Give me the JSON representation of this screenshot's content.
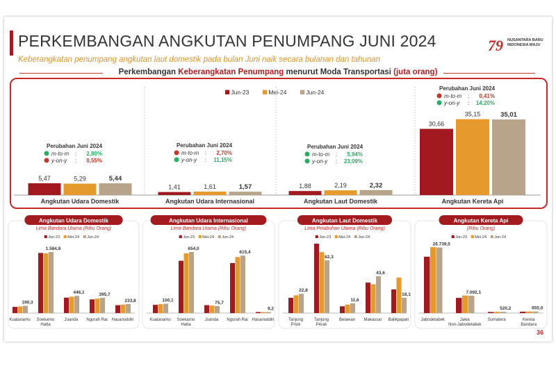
{
  "header": {
    "title": "PERKEMBANGAN ANGKUTAN PENUMPANG JUNI 2024",
    "subtitle": "Keberangkatan penumpang angkutan laut domestik pada bulan Juni naik secara bulanan dan tahunan",
    "logo_text": "NUSANTARA BARU INDONESIA MAJU"
  },
  "section": {
    "prefix": "Perkembangan ",
    "highlight": "Keberangkatan Penumpang",
    "middle": " menurut Moda Transportasi ",
    "unit": "(juta orang)"
  },
  "page_number": "36",
  "colors": {
    "jun23": "#a01a1f",
    "mei24": "#e59a2b",
    "jun24": "#b8a48a",
    "accent": "#c62828",
    "up": "#27ae60",
    "down": "#c0392b"
  },
  "chart_data": [
    {
      "type": "bar",
      "legend": [
        "Jun-23",
        "Mei-24",
        "Jun-24"
      ],
      "categories": [
        "Angkutan Udara Domestik",
        "Angkutan Udara Internasional",
        "Angkutan Laut Domestik",
        "Angkutan Kereta Api"
      ],
      "series": [
        {
          "name": "Jun-23",
          "values": [
            5.47,
            1.41,
            1.88,
            30.66
          ],
          "labels": [
            "5,47",
            "1,41",
            "1,88",
            "30,66"
          ]
        },
        {
          "name": "Mei-24",
          "values": [
            5.29,
            1.61,
            2.19,
            35.15
          ],
          "labels": [
            "5,29",
            "1,61",
            "2,19",
            "35,15"
          ]
        },
        {
          "name": "Jun-24",
          "values": [
            5.44,
            1.57,
            2.32,
            35.01
          ],
          "labels": [
            "5,44",
            "1,57",
            "2,32",
            "35,01"
          ]
        }
      ],
      "change_boxes": [
        {
          "title": "Perubahan Juni 2024",
          "mtm_label": "m-to-m",
          "mtm": "2,80%",
          "mtm_dir": "up",
          "yoy_label": "y-on-y",
          "yoy": "0,55%",
          "yoy_dir": "down"
        },
        {
          "title": "Perubahan Juni 2024",
          "mtm_label": "m-to-m",
          "mtm": "2,70%",
          "mtm_dir": "down",
          "yoy_label": "y-on-y",
          "yoy": "11,15%",
          "yoy_dir": "up"
        },
        {
          "title": "Perubahan Juni 2024",
          "mtm_label": "m-to-m",
          "mtm": "5,94%",
          "mtm_dir": "up",
          "yoy_label": "y-on-y",
          "yoy": "23,09%",
          "yoy_dir": "up"
        },
        {
          "title": "Perubahan Juni 2024",
          "mtm_label": "m-to-m",
          "mtm": "0,41%",
          "mtm_dir": "down",
          "yoy_label": "y-on-y",
          "yoy": "14,20%",
          "yoy_dir": "up"
        }
      ]
    },
    {
      "type": "bar",
      "title": "Angkutan Udara Domestik",
      "subtitle": "Lima Bandara Utama (Ribu Orang)",
      "legend": [
        "Jun-23",
        "Mei-24",
        "Jun-24"
      ],
      "categories": [
        "Kualanamu",
        "Soekarno Hatta",
        "Juanda",
        "Ngurah Rai",
        "Hasanuddin"
      ],
      "series": [
        {
          "name": "Jun-23",
          "values": [
            160,
            1560,
            400,
            355,
            205
          ]
        },
        {
          "name": "Mei-24",
          "values": [
            172,
            1550,
            425,
            375,
            220
          ]
        },
        {
          "name": "Jun-24",
          "values": [
            190.3,
            1584.8,
            446.1,
            395.7,
            233.8
          ]
        }
      ],
      "data_labels": [
        "190,3",
        "1.584,8",
        "446,1",
        "395,7",
        "233,8"
      ]
    },
    {
      "type": "bar",
      "title": "Angkutan Udara Internasional",
      "subtitle": "Lima Bandara Utama (Ribu Orang)",
      "legend": [
        "Jun-23",
        "Mei-24",
        "Jun-24"
      ],
      "categories": [
        "Kualanamu",
        "Soekarno Hatta",
        "Juanda",
        "Ngurah Rai",
        "Hasanuddin"
      ],
      "series": [
        {
          "name": "Jun-23",
          "values": [
            88,
            560,
            85,
            535,
            7
          ]
        },
        {
          "name": "Mei-24",
          "values": [
            95,
            640,
            80,
            600,
            8
          ]
        },
        {
          "name": "Jun-24",
          "values": [
            100.1,
            654.0,
            75.7,
            615.4,
            9.2
          ]
        }
      ],
      "data_labels": [
        "100,1",
        "654,0",
        "75,7",
        "615,4",
        "9,2"
      ]
    },
    {
      "type": "bar",
      "title": "Angkutan Laut Domestik",
      "subtitle": "Lima Pelabuhan Utama (Ribu Orang)",
      "legend": [
        "Jun-23",
        "Mei-24",
        "Jun-24"
      ],
      "categories": [
        "Tanjung Priok",
        "Tanjung Perak",
        "Belawan",
        "Makassar",
        "Balikpapan"
      ],
      "series": [
        {
          "name": "Jun-23",
          "values": [
            18,
            82,
            8,
            36,
            28
          ]
        },
        {
          "name": "Mei-24",
          "values": [
            21,
            72,
            10,
            34,
            42
          ]
        },
        {
          "name": "Jun-24",
          "values": [
            22.8,
            62.3,
            11.6,
            43.6,
            18.1
          ]
        }
      ],
      "data_labels": [
        "22,8",
        "62,3",
        "11,6",
        "43,6",
        "18,1"
      ]
    },
    {
      "type": "bar",
      "title": "Angkutan Kereta Api",
      "subtitle": "(Ribu Orang)",
      "legend": [
        "Jun-23",
        "Mei-24",
        "Jun-24"
      ],
      "categories": [
        "Jabodetabek",
        "Jawa Non-Jabodetabek",
        "Sumatera",
        "Kereta Bandara"
      ],
      "series": [
        {
          "name": "Jun-23",
          "values": [
            23000,
            6200,
            450,
            560
          ]
        },
        {
          "name": "Mei-24",
          "values": [
            26900,
            7150,
            500,
            640
          ]
        },
        {
          "name": "Jun-24",
          "values": [
            26739.5,
            7092.1,
            520.2,
            655.0
          ]
        }
      ],
      "data_labels": [
        "26.739,5",
        "7.092,1",
        "520,2",
        "655,0"
      ]
    }
  ]
}
